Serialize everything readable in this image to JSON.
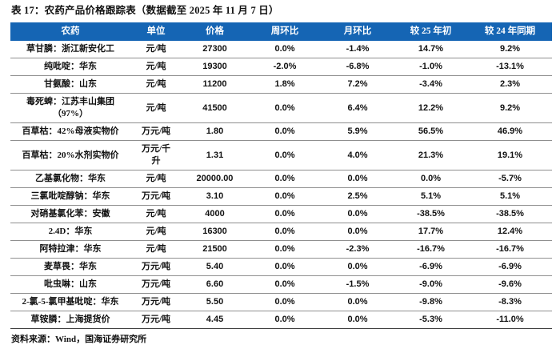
{
  "title": "表 17：农药产品价格跟踪表（数据截至 2025 年 11 月 7 日）",
  "table": {
    "columns": [
      "农药",
      "单位",
      "价格",
      "周环比",
      "月环比",
      "较 25 年初",
      "较 24 年同期"
    ],
    "rows": [
      {
        "name": "草甘膦：浙江新安化工",
        "unit": "元/吨",
        "price": "27300",
        "wow": "0.0%",
        "mom": "-1.4%",
        "ytd": "14.7%",
        "yoy": "9.2%"
      },
      {
        "name": "纯吡啶：华东",
        "unit": "元/吨",
        "price": "19300",
        "wow": "-2.0%",
        "mom": "-6.8%",
        "ytd": "-1.0%",
        "yoy": "-13.1%"
      },
      {
        "name": "甘氨酸：山东",
        "unit": "元/吨",
        "price": "11200",
        "wow": "1.8%",
        "mom": "7.2%",
        "ytd": "-3.4%",
        "yoy": "2.3%"
      },
      {
        "name": "毒死蜱：江苏丰山集团\n（97%）",
        "unit": "元/吨",
        "price": "41500",
        "wow": "0.0%",
        "mom": "6.4%",
        "ytd": "12.2%",
        "yoy": "9.2%"
      },
      {
        "name": "百草枯：42%母液实物价",
        "unit": "万元/吨",
        "price": "1.80",
        "wow": "0.0%",
        "mom": "5.9%",
        "ytd": "56.5%",
        "yoy": "46.9%"
      },
      {
        "name": "百草枯：20%水剂实物价",
        "unit": "万元/千\n升",
        "price": "1.31",
        "wow": "0.0%",
        "mom": "4.0%",
        "ytd": "21.3%",
        "yoy": "19.1%"
      },
      {
        "name": "乙基氯化物：华东",
        "unit": "元/吨",
        "price": "20000.00",
        "wow": "0.0%",
        "mom": "0.0%",
        "ytd": "0.0%",
        "yoy": "-5.7%"
      },
      {
        "name": "三氯吡啶醇钠：华东",
        "unit": "万元/吨",
        "price": "3.10",
        "wow": "0.0%",
        "mom": "2.5%",
        "ytd": "5.1%",
        "yoy": "5.1%"
      },
      {
        "name": "对硝基氯化苯：安徽",
        "unit": "元/吨",
        "price": "4000",
        "wow": "0.0%",
        "mom": "0.0%",
        "ytd": "-38.5%",
        "yoy": "-38.5%"
      },
      {
        "name": "2.4D：华东",
        "unit": "元/吨",
        "price": "16300",
        "wow": "0.0%",
        "mom": "0.0%",
        "ytd": "17.7%",
        "yoy": "12.4%"
      },
      {
        "name": "阿特拉津：华东",
        "unit": "元/吨",
        "price": "21500",
        "wow": "0.0%",
        "mom": "-2.3%",
        "ytd": "-16.7%",
        "yoy": "-16.7%"
      },
      {
        "name": "麦草畏：华东",
        "unit": "万元/吨",
        "price": "5.40",
        "wow": "0.0%",
        "mom": "0.0%",
        "ytd": "-6.9%",
        "yoy": "-6.9%"
      },
      {
        "name": "吡虫啉：山东",
        "unit": "万元/吨",
        "price": "6.60",
        "wow": "0.0%",
        "mom": "-1.5%",
        "ytd": "-9.0%",
        "yoy": "-9.6%"
      },
      {
        "name": "2-氯-5-氯甲基吡啶：华东",
        "unit": "万元/吨",
        "price": "5.50",
        "wow": "0.0%",
        "mom": "0.0%",
        "ytd": "-9.8%",
        "yoy": "-8.3%"
      },
      {
        "name": "草铵膦：上海提货价",
        "unit": "万元/吨",
        "price": "4.45",
        "wow": "0.0%",
        "mom": "0.0%",
        "ytd": "-5.3%",
        "yoy": "-11.0%"
      }
    ]
  },
  "footer": "资料来源：Wind，国海证券研究所",
  "colors": {
    "header_bg": "#1565b4",
    "header_text": "#ffffff",
    "row_line": "#8f8f8f",
    "bottom_line": "#3c3c3c",
    "title_color": "#111111"
  }
}
